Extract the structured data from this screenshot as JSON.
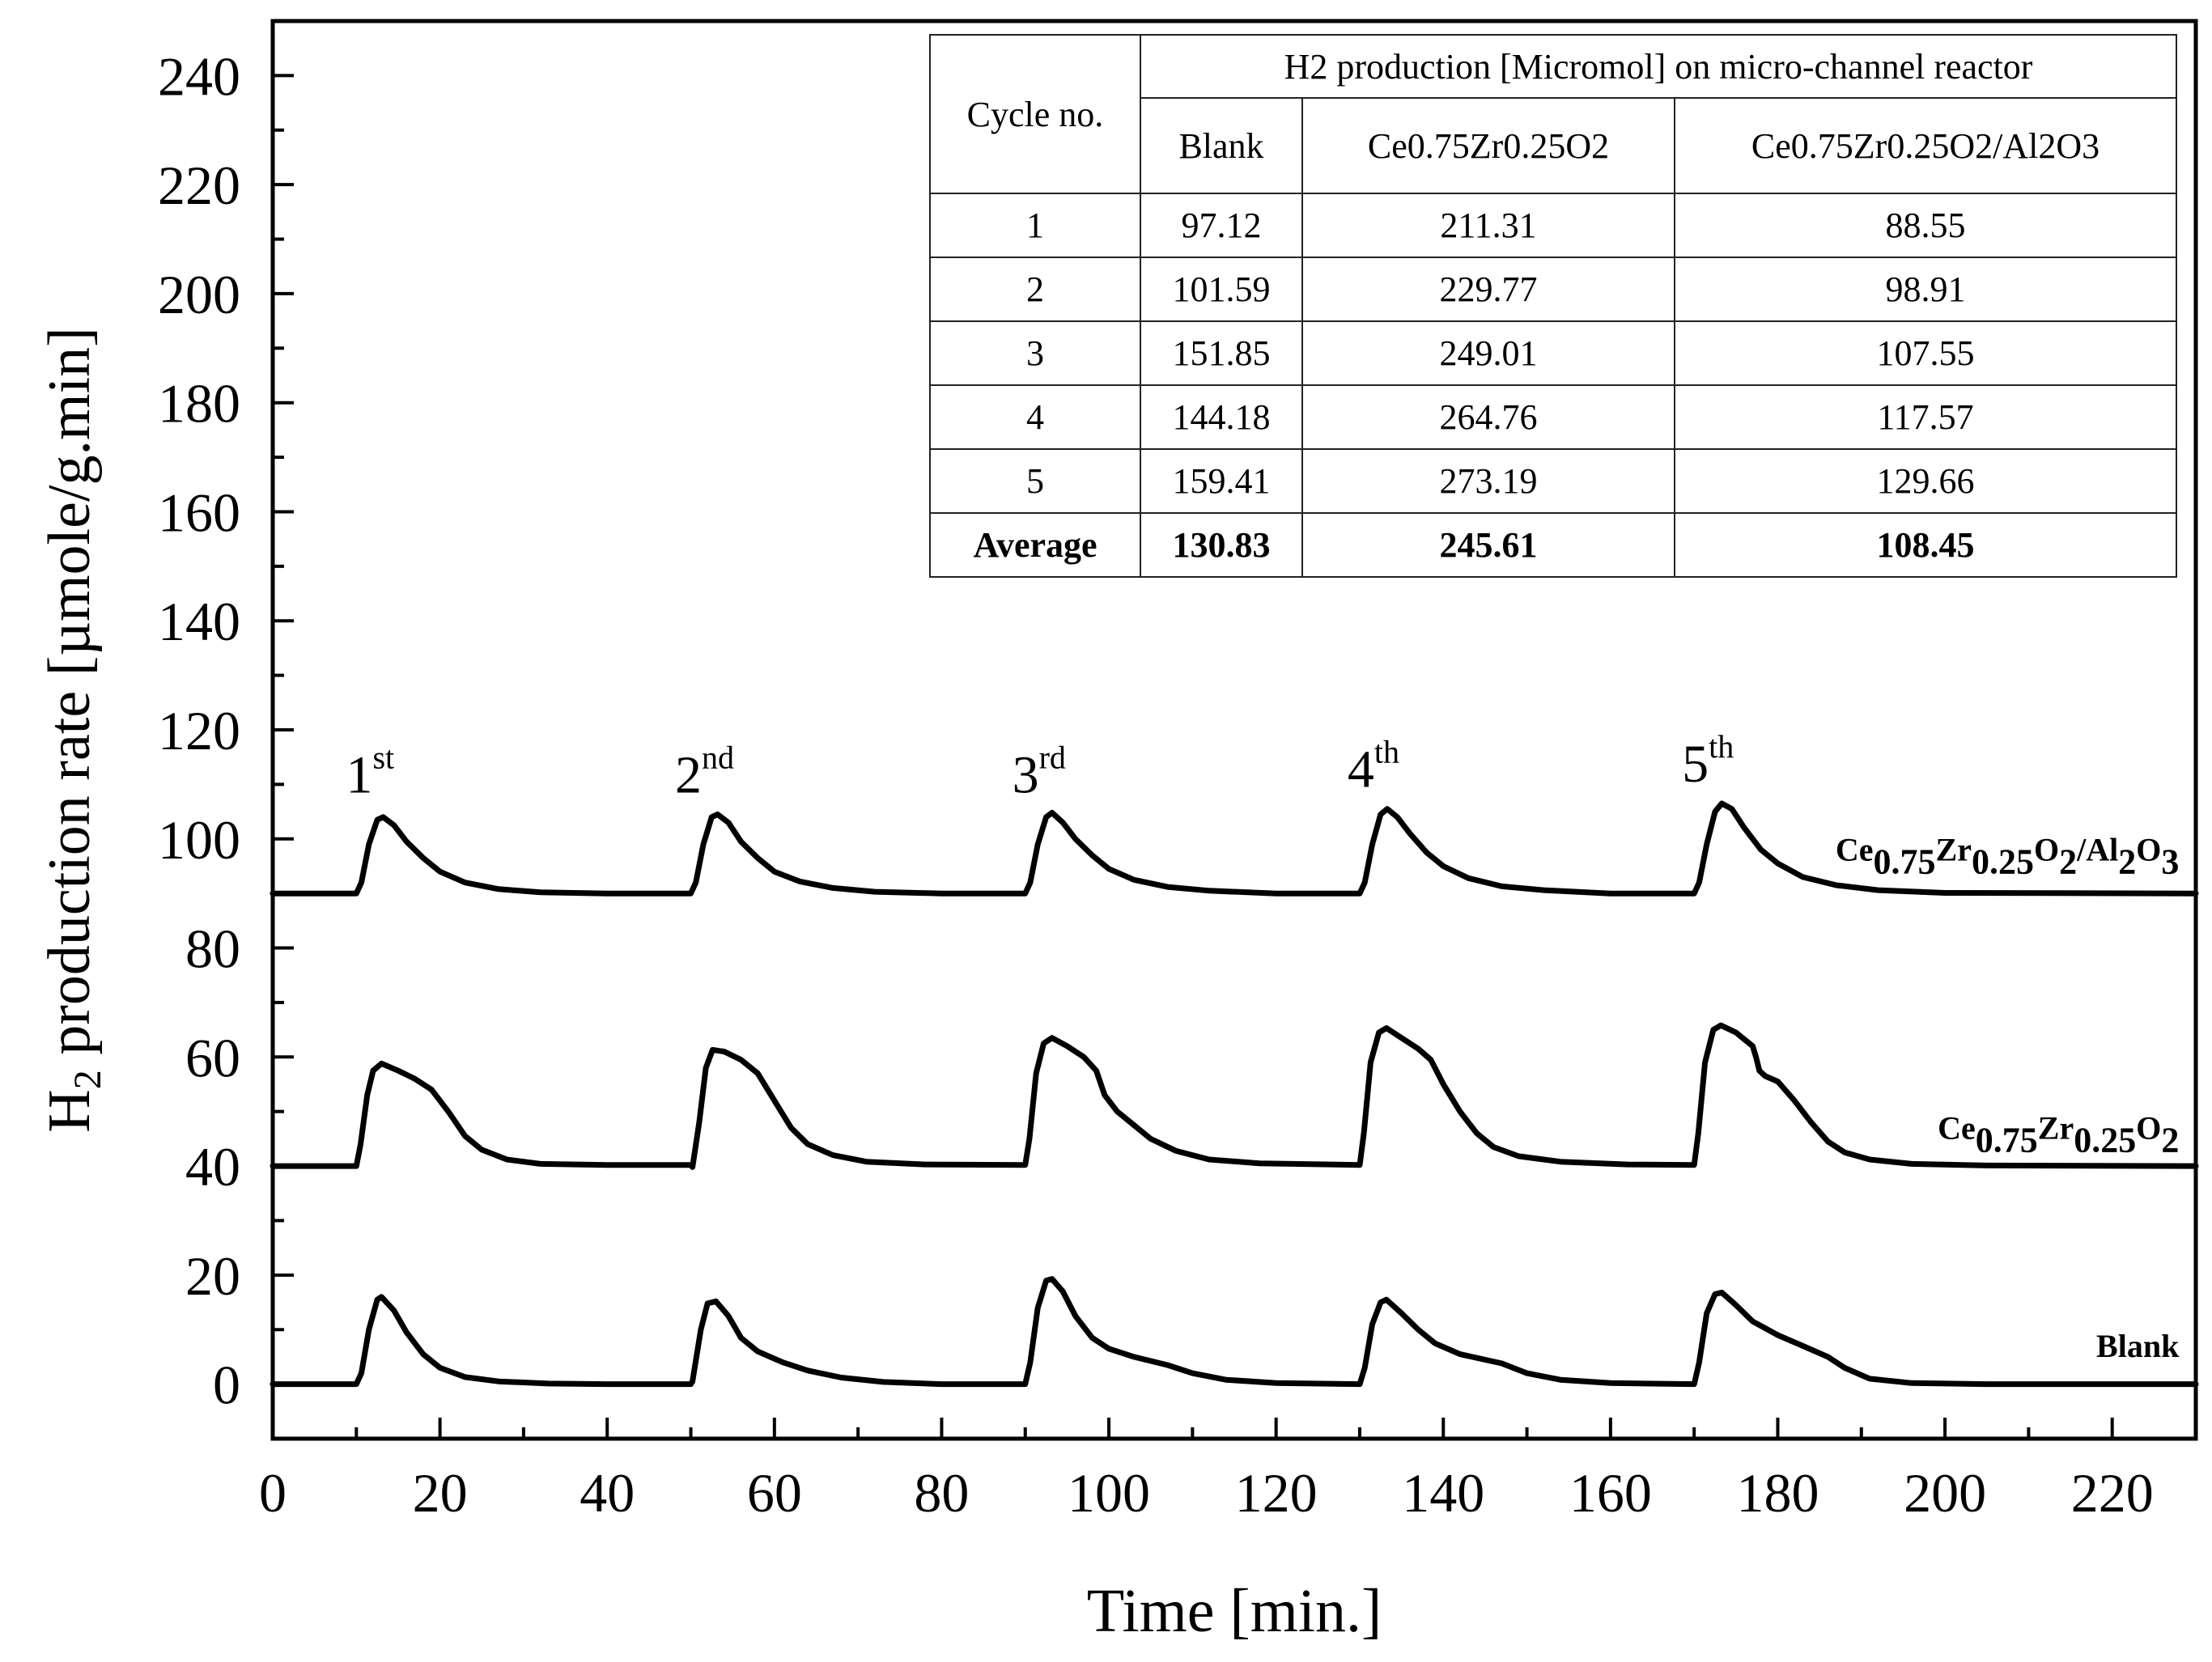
{
  "chart_data": {
    "type": "line",
    "xlabel": "Time [min.]",
    "ylabel_main": "H",
    "ylabel_sub": "2",
    "ylabel_rest": " production rate [µmole/g.min]",
    "xlim": [
      0,
      230
    ],
    "ylim": [
      -10,
      250
    ],
    "xticks": [
      0,
      20,
      40,
      60,
      80,
      100,
      120,
      140,
      160,
      180,
      200,
      220
    ],
    "yticks": [
      0,
      20,
      40,
      60,
      80,
      100,
      120,
      140,
      160,
      180,
      200,
      220,
      240
    ],
    "cycle_labels": [
      {
        "base": "1",
        "sup": "st",
        "x": 13,
        "y": 110
      },
      {
        "base": "2",
        "sup": "nd",
        "x": 53,
        "y": 110
      },
      {
        "base": "3",
        "sup": "rd",
        "x": 93,
        "y": 110
      },
      {
        "base": "4",
        "sup": "th",
        "x": 133,
        "y": 111
      },
      {
        "base": "5",
        "sup": "th",
        "x": 173,
        "y": 112
      }
    ],
    "series": [
      {
        "name": "Ce0.75Zr0.25O2/Al2O3",
        "label_parts": [
          [
            "Ce",
            ""
          ],
          [
            "0.75",
            "sub"
          ],
          [
            "Zr",
            ""
          ],
          [
            "0.25",
            "sub"
          ],
          [
            "O",
            ""
          ],
          [
            "2",
            "sub"
          ],
          [
            "/Al",
            ""
          ],
          [
            "2",
            "sub"
          ],
          [
            "O",
            ""
          ],
          [
            "3",
            "sub"
          ]
        ],
        "label_x": 228,
        "label_y": 96,
        "baseline": 90,
        "points": [
          [
            0,
            90
          ],
          [
            10,
            90
          ],
          [
            10.6,
            92
          ],
          [
            11.5,
            99
          ],
          [
            12.5,
            103.5
          ],
          [
            13.2,
            104
          ],
          [
            14.5,
            102.5
          ],
          [
            16,
            99.5
          ],
          [
            18,
            96.5
          ],
          [
            20,
            94
          ],
          [
            23,
            92
          ],
          [
            27,
            90.8
          ],
          [
            32,
            90.2
          ],
          [
            40,
            90
          ],
          [
            50,
            90
          ],
          [
            50.6,
            92
          ],
          [
            51.5,
            99
          ],
          [
            52.5,
            104
          ],
          [
            53.2,
            104.5
          ],
          [
            54.5,
            103
          ],
          [
            56,
            99.5
          ],
          [
            58,
            96.5
          ],
          [
            60,
            94
          ],
          [
            63,
            92.2
          ],
          [
            67,
            91
          ],
          [
            72,
            90.3
          ],
          [
            80,
            90
          ],
          [
            90,
            90
          ],
          [
            90.6,
            92
          ],
          [
            91.5,
            99
          ],
          [
            92.5,
            104
          ],
          [
            93.2,
            104.8
          ],
          [
            94.5,
            103
          ],
          [
            96,
            100
          ],
          [
            98,
            97
          ],
          [
            100,
            94.5
          ],
          [
            103,
            92.5
          ],
          [
            107,
            91.2
          ],
          [
            112,
            90.5
          ],
          [
            120,
            90
          ],
          [
            130,
            90
          ],
          [
            130.6,
            92
          ],
          [
            131.5,
            99
          ],
          [
            132.5,
            104.5
          ],
          [
            133.3,
            105.5
          ],
          [
            134.5,
            104
          ],
          [
            136,
            101
          ],
          [
            138,
            97.5
          ],
          [
            140,
            95
          ],
          [
            143,
            92.8
          ],
          [
            147,
            91.3
          ],
          [
            152,
            90.6
          ],
          [
            160,
            90
          ],
          [
            170,
            90
          ],
          [
            170.6,
            92
          ],
          [
            171.5,
            99
          ],
          [
            172.5,
            105
          ],
          [
            173.3,
            106.5
          ],
          [
            174.5,
            105.5
          ],
          [
            176,
            102
          ],
          [
            178,
            98
          ],
          [
            180,
            95.5
          ],
          [
            183,
            93
          ],
          [
            187,
            91.5
          ],
          [
            192,
            90.6
          ],
          [
            200,
            90.1
          ],
          [
            230,
            90
          ]
        ]
      },
      {
        "name": "Ce0.75Zr0.25O2",
        "label_parts": [
          [
            "Ce",
            ""
          ],
          [
            "0.75",
            "sub"
          ],
          [
            "Zr",
            ""
          ],
          [
            "0.25",
            "sub"
          ],
          [
            "O",
            ""
          ],
          [
            "2",
            "sub"
          ]
        ],
        "label_x": 228,
        "label_y": 45,
        "baseline": 40,
        "points": [
          [
            0,
            40
          ],
          [
            10,
            40
          ],
          [
            10.5,
            44
          ],
          [
            11.3,
            53
          ],
          [
            12,
            57.5
          ],
          [
            13,
            58.8
          ],
          [
            15,
            57.5
          ],
          [
            17,
            56
          ],
          [
            19,
            54
          ],
          [
            21,
            50
          ],
          [
            23,
            45.5
          ],
          [
            25,
            43
          ],
          [
            28,
            41.2
          ],
          [
            32,
            40.4
          ],
          [
            40,
            40.2
          ],
          [
            50,
            40.2
          ],
          [
            50.2,
            39.8
          ],
          [
            51,
            48
          ],
          [
            51.8,
            58
          ],
          [
            52.6,
            61.3
          ],
          [
            54,
            61
          ],
          [
            56,
            59.5
          ],
          [
            58,
            57
          ],
          [
            60,
            52
          ],
          [
            62,
            47
          ],
          [
            64,
            44
          ],
          [
            67,
            42
          ],
          [
            71,
            40.8
          ],
          [
            78,
            40.3
          ],
          [
            90,
            40.2
          ],
          [
            90.5,
            45
          ],
          [
            91.3,
            57
          ],
          [
            92.2,
            62.5
          ],
          [
            93.2,
            63.5
          ],
          [
            95,
            62
          ],
          [
            97,
            60
          ],
          [
            98.5,
            57.5
          ],
          [
            99.5,
            53
          ],
          [
            101,
            50
          ],
          [
            103,
            47.5
          ],
          [
            105,
            45
          ],
          [
            108,
            42.8
          ],
          [
            112,
            41.2
          ],
          [
            118,
            40.5
          ],
          [
            130,
            40.2
          ],
          [
            130.5,
            46
          ],
          [
            131.3,
            59
          ],
          [
            132.3,
            64.5
          ],
          [
            133.2,
            65.3
          ],
          [
            135,
            63.5
          ],
          [
            137,
            61.5
          ],
          [
            138.5,
            59.5
          ],
          [
            140,
            55
          ],
          [
            142,
            50
          ],
          [
            144,
            46
          ],
          [
            146,
            43.5
          ],
          [
            149,
            41.8
          ],
          [
            154,
            40.8
          ],
          [
            162,
            40.3
          ],
          [
            170,
            40.2
          ],
          [
            170.5,
            46
          ],
          [
            171.3,
            59
          ],
          [
            172.3,
            65
          ],
          [
            173.2,
            65.8
          ],
          [
            175,
            64.5
          ],
          [
            177,
            62
          ],
          [
            177.4,
            60
          ],
          [
            177.8,
            57.5
          ],
          [
            178.5,
            56.5
          ],
          [
            180,
            55.5
          ],
          [
            182,
            52
          ],
          [
            184,
            48
          ],
          [
            186,
            44.5
          ],
          [
            188,
            42.5
          ],
          [
            191,
            41.2
          ],
          [
            196,
            40.4
          ],
          [
            205,
            40.1
          ],
          [
            230,
            40
          ]
        ]
      },
      {
        "name": "Blank",
        "label_parts": [
          [
            "Blank",
            ""
          ]
        ],
        "label_x": 228,
        "label_y": 5,
        "baseline": 0,
        "points": [
          [
            0,
            0
          ],
          [
            10,
            0
          ],
          [
            10.6,
            2
          ],
          [
            11.5,
            10
          ],
          [
            12.5,
            15.5
          ],
          [
            13,
            16
          ],
          [
            14.5,
            13.5
          ],
          [
            16,
            9.5
          ],
          [
            18,
            5.5
          ],
          [
            20,
            3
          ],
          [
            23,
            1.3
          ],
          [
            27,
            0.5
          ],
          [
            33,
            0.1
          ],
          [
            40,
            0
          ],
          [
            50,
            0
          ],
          [
            50.2,
            0.5
          ],
          [
            51.2,
            10
          ],
          [
            52,
            14.8
          ],
          [
            53,
            15.2
          ],
          [
            54.5,
            12.5
          ],
          [
            56,
            8.5
          ],
          [
            58,
            6
          ],
          [
            61,
            4
          ],
          [
            64,
            2.5
          ],
          [
            68,
            1.2
          ],
          [
            73,
            0.4
          ],
          [
            80,
            0
          ],
          [
            90,
            0
          ],
          [
            90.6,
            4
          ],
          [
            91.5,
            14
          ],
          [
            92.5,
            19
          ],
          [
            93.2,
            19.3
          ],
          [
            94.5,
            17
          ],
          [
            96,
            12.5
          ],
          [
            98,
            8.5
          ],
          [
            100,
            6.5
          ],
          [
            103,
            5
          ],
          [
            107,
            3.5
          ],
          [
            110,
            2
          ],
          [
            114,
            0.8
          ],
          [
            120,
            0.2
          ],
          [
            130,
            0
          ],
          [
            130.6,
            3
          ],
          [
            131.5,
            11
          ],
          [
            132.5,
            15
          ],
          [
            133.2,
            15.5
          ],
          [
            135,
            13
          ],
          [
            137,
            10
          ],
          [
            139,
            7.5
          ],
          [
            142,
            5.5
          ],
          [
            147,
            3.8
          ],
          [
            150,
            2
          ],
          [
            154,
            0.8
          ],
          [
            160,
            0.2
          ],
          [
            170,
            0
          ],
          [
            170.6,
            4
          ],
          [
            171.5,
            13
          ],
          [
            172.5,
            16.5
          ],
          [
            173.3,
            16.8
          ],
          [
            175,
            14.5
          ],
          [
            177,
            11.5
          ],
          [
            180,
            9
          ],
          [
            183,
            7
          ],
          [
            186,
            5
          ],
          [
            188,
            3
          ],
          [
            191,
            1
          ],
          [
            196,
            0.2
          ],
          [
            205,
            0
          ],
          [
            230,
            0
          ]
        ]
      }
    ]
  },
  "inset_table": {
    "cycle_header": "Cycle no.",
    "group_header": "H2 production [Micromol] on micro-channel reactor",
    "columns": [
      "Blank",
      "Ce0.75Zr0.25O2",
      "Ce0.75Zr0.25O2/Al2O3"
    ],
    "rows": [
      {
        "cycle": "1",
        "v": [
          "97.12",
          "211.31",
          "88.55"
        ]
      },
      {
        "cycle": "2",
        "v": [
          "101.59",
          "229.77",
          "98.91"
        ]
      },
      {
        "cycle": "3",
        "v": [
          "151.85",
          "249.01",
          "107.55"
        ]
      },
      {
        "cycle": "4",
        "v": [
          "144.18",
          "264.76",
          "117.57"
        ]
      },
      {
        "cycle": "5",
        "v": [
          "159.41",
          "273.19",
          "129.66"
        ]
      }
    ],
    "average": {
      "label": "Average",
      "v": [
        "130.83",
        "245.61",
        "108.45"
      ]
    }
  }
}
